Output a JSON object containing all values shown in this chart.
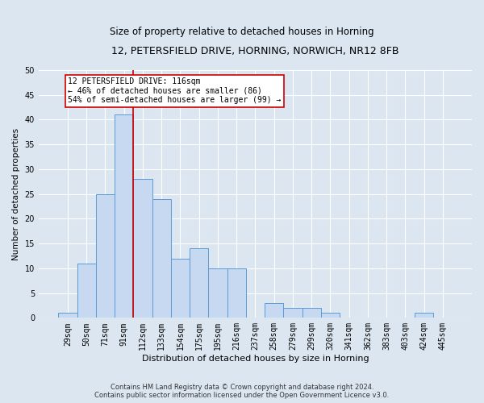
{
  "title1": "12, PETERSFIELD DRIVE, HORNING, NORWICH, NR12 8FB",
  "title2": "Size of property relative to detached houses in Horning",
  "xlabel": "Distribution of detached houses by size in Horning",
  "ylabel": "Number of detached properties",
  "footnote": "Contains HM Land Registry data © Crown copyright and database right 2024.\nContains public sector information licensed under the Open Government Licence v3.0.",
  "bin_labels": [
    "29sqm",
    "50sqm",
    "71sqm",
    "91sqm",
    "112sqm",
    "133sqm",
    "154sqm",
    "175sqm",
    "195sqm",
    "216sqm",
    "237sqm",
    "258sqm",
    "279sqm",
    "299sqm",
    "320sqm",
    "341sqm",
    "362sqm",
    "383sqm",
    "403sqm",
    "424sqm",
    "445sqm"
  ],
  "values": [
    1,
    11,
    25,
    41,
    28,
    24,
    12,
    14,
    10,
    10,
    0,
    3,
    2,
    2,
    1,
    0,
    0,
    0,
    0,
    1,
    0
  ],
  "bar_color": "#c6d9f0",
  "bar_edge_color": "#5b9bd5",
  "background_color": "#dce6f1",
  "grid_color": "#ffffff",
  "annotation_box_text": "12 PETERSFIELD DRIVE: 116sqm\n← 46% of detached houses are smaller (86)\n54% of semi-detached houses are larger (99) →",
  "annotation_box_color": "#ffffff",
  "annotation_box_edge_color": "#cc0000",
  "vline_color": "#cc0000",
  "vline_pos": 3.5,
  "ylim": [
    0,
    50
  ],
  "yticks": [
    0,
    5,
    10,
    15,
    20,
    25,
    30,
    35,
    40,
    45,
    50
  ],
  "title1_fontsize": 9,
  "title2_fontsize": 8.5,
  "xlabel_fontsize": 8,
  "ylabel_fontsize": 7.5,
  "tick_fontsize": 7,
  "footnote_fontsize": 6,
  "ann_fontsize": 7
}
